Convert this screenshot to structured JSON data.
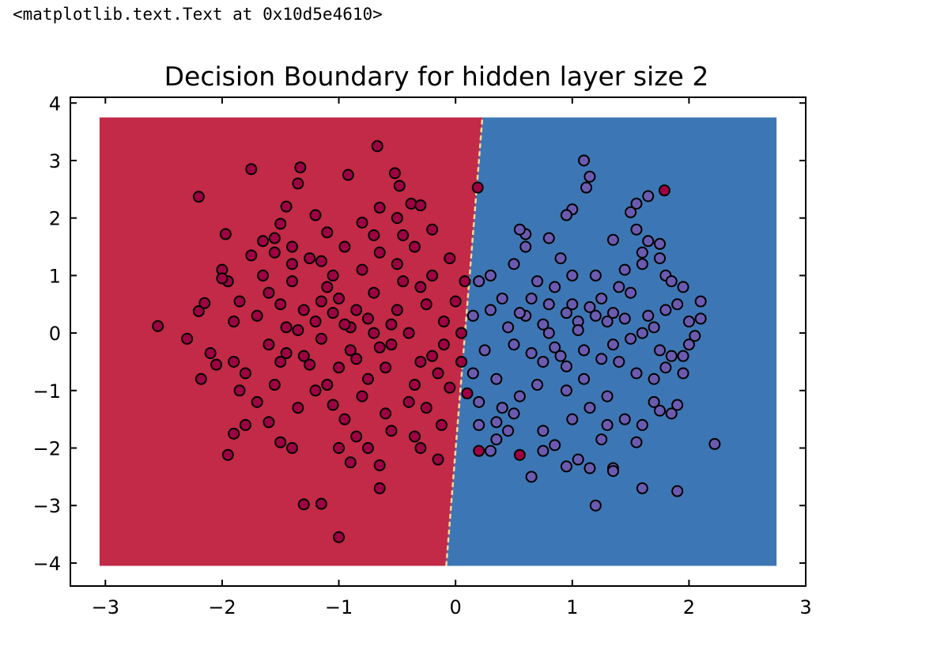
{
  "output": {
    "text": "<matplotlib.text.Text at 0x10d5e4610>"
  },
  "chart_data": {
    "type": "scatter",
    "title": "Decision Boundary for hidden layer size 2",
    "xlabel": "",
    "ylabel": "",
    "xlim": [
      -3.3,
      3.0
    ],
    "ylim": [
      -4.4,
      4.1
    ],
    "xticks": [
      -3,
      -2,
      -1,
      0,
      1,
      2,
      3
    ],
    "xtick_labels": [
      "−3",
      "−2",
      "−1",
      "0",
      "1",
      "2",
      "3"
    ],
    "yticks": [
      -4,
      -3,
      -2,
      -1,
      0,
      1,
      2,
      3,
      4
    ],
    "ytick_labels": [
      "−4",
      "−3",
      "−2",
      "−1",
      "0",
      "1",
      "2",
      "3",
      "4"
    ],
    "grid": false,
    "legend": "none",
    "colors": {
      "region_class_0": "#c22a47",
      "region_class_1": "#3d76b4",
      "point_class_0": "#9e0142",
      "point_class_1": "#6a5bb0",
      "point_edge": "#000000",
      "boundary": "#f2d99b"
    },
    "decision_regions": {
      "x_range": [
        -3.05,
        2.75
      ],
      "y_range": [
        -4.05,
        3.75
      ],
      "boundary_line": [
        [
          -0.08,
          -4.05
        ],
        [
          0.23,
          3.75
        ]
      ]
    },
    "series": [
      {
        "class": 0,
        "points": [
          [
            -2.55,
            0.12
          ],
          [
            -2.3,
            -0.1
          ],
          [
            -2.2,
            2.37
          ],
          [
            -2.2,
            0.38
          ],
          [
            -2.15,
            0.52
          ],
          [
            -2.1,
            -0.35
          ],
          [
            -2.18,
            -0.8
          ],
          [
            -1.97,
            1.72
          ],
          [
            -2.0,
            1.1
          ],
          [
            -1.95,
            0.9
          ],
          [
            -1.9,
            -0.5
          ],
          [
            -1.85,
            0.55
          ],
          [
            -1.8,
            -1.6
          ],
          [
            -1.95,
            -2.12
          ],
          [
            -1.9,
            -1.75
          ],
          [
            -1.75,
            2.85
          ],
          [
            -1.65,
            1.6
          ],
          [
            -1.55,
            1.4
          ],
          [
            -1.5,
            1.9
          ],
          [
            -1.45,
            2.2
          ],
          [
            -1.4,
            1.5
          ],
          [
            -1.35,
            2.6
          ],
          [
            -1.33,
            2.88
          ],
          [
            -1.2,
            2.05
          ],
          [
            -1.1,
            1.75
          ],
          [
            -0.92,
            2.75
          ],
          [
            -0.8,
            1.92
          ],
          [
            -0.7,
            1.7
          ],
          [
            -0.67,
            3.25
          ],
          [
            -0.65,
            2.18
          ],
          [
            -0.5,
            2.0
          ],
          [
            -0.52,
            2.78
          ],
          [
            -0.48,
            2.56
          ],
          [
            -0.38,
            2.25
          ],
          [
            -0.3,
            2.22
          ],
          [
            -0.2,
            1.8
          ],
          [
            -1.3,
            -2.98
          ],
          [
            -1.15,
            -2.97
          ],
          [
            -1.0,
            -3.55
          ],
          [
            -1.5,
            -1.9
          ],
          [
            -1.4,
            -2.0
          ],
          [
            -1.0,
            -2.0
          ],
          [
            -0.9,
            -2.25
          ],
          [
            -0.75,
            -2.0
          ],
          [
            -0.65,
            -2.3
          ],
          [
            -0.65,
            -2.7
          ],
          [
            -0.35,
            -1.8
          ],
          [
            -0.3,
            -2.0
          ],
          [
            -0.15,
            -2.2
          ],
          [
            -0.12,
            -1.6
          ],
          [
            0.1,
            -1.05
          ],
          [
            0.2,
            -2.05
          ],
          [
            0.19,
            2.53
          ],
          [
            1.79,
            2.48
          ],
          [
            0.55,
            -2.12
          ],
          [
            -1.7,
            0.3
          ],
          [
            -1.6,
            -0.2
          ],
          [
            -1.5,
            0.5
          ],
          [
            -1.4,
            0.9
          ],
          [
            -1.3,
            -0.4
          ],
          [
            -1.2,
            0.2
          ],
          [
            -1.1,
            -0.9
          ],
          [
            -1.0,
            0.6
          ],
          [
            -0.9,
            -0.3
          ],
          [
            -0.8,
            1.1
          ],
          [
            -0.7,
            0.0
          ],
          [
            -0.6,
            -0.6
          ],
          [
            -0.5,
            0.4
          ],
          [
            -0.4,
            -1.2
          ],
          [
            -0.3,
            0.8
          ],
          [
            -0.2,
            -0.4
          ],
          [
            -0.1,
            0.2
          ],
          [
            -1.65,
            1.0
          ],
          [
            -1.55,
            -0.9
          ],
          [
            -1.45,
            0.1
          ],
          [
            -1.35,
            -1.3
          ],
          [
            -1.25,
            1.3
          ],
          [
            -1.15,
            -0.1
          ],
          [
            -1.05,
            1.0
          ],
          [
            -0.95,
            -1.5
          ],
          [
            -0.85,
            0.4
          ],
          [
            -0.75,
            -0.8
          ],
          [
            -0.65,
            1.4
          ],
          [
            -0.55,
            -0.2
          ],
          [
            -0.45,
            0.9
          ],
          [
            -0.35,
            -0.9
          ],
          [
            -0.25,
            0.5
          ],
          [
            -0.15,
            -0.7
          ],
          [
            -0.05,
            1.3
          ],
          [
            -1.8,
            -0.7
          ],
          [
            -1.7,
            -1.2
          ],
          [
            -1.6,
            0.7
          ],
          [
            -1.5,
            -0.5
          ],
          [
            -1.4,
            1.2
          ],
          [
            -1.3,
            0.4
          ],
          [
            -1.2,
            -1.0
          ],
          [
            -1.1,
            0.8
          ],
          [
            -1.0,
            -0.6
          ],
          [
            -0.9,
            0.1
          ],
          [
            -0.8,
            -1.1
          ],
          [
            -0.7,
            0.7
          ],
          [
            -0.6,
            -1.4
          ],
          [
            -0.5,
            1.2
          ],
          [
            -0.4,
            0.0
          ],
          [
            -0.3,
            -0.5
          ],
          [
            -0.2,
            1.0
          ],
          [
            -0.1,
            -0.2
          ],
          [
            -1.05,
            0.35
          ],
          [
            -0.95,
            0.15
          ],
          [
            -1.15,
            0.55
          ],
          [
            -0.85,
            -0.45
          ],
          [
            -1.25,
            -0.55
          ],
          [
            -0.75,
            0.25
          ],
          [
            -1.35,
            0.05
          ],
          [
            -0.65,
            -0.25
          ],
          [
            -1.45,
            -0.35
          ],
          [
            -0.55,
            0.15
          ],
          [
            -1.9,
            0.2
          ],
          [
            -2.05,
            -0.55
          ],
          [
            -2.0,
            0.95
          ],
          [
            -1.85,
            -1.0
          ],
          [
            -1.75,
            1.35
          ],
          [
            -0.35,
            1.5
          ],
          [
            -0.25,
            -1.3
          ],
          [
            -0.45,
            1.7
          ],
          [
            -0.55,
            -1.7
          ],
          [
            -1.55,
            1.65
          ],
          [
            -1.6,
            -1.55
          ],
          [
            -0.95,
            1.5
          ],
          [
            -0.85,
            -1.8
          ],
          [
            -1.05,
            -1.25
          ],
          [
            -1.15,
            1.25
          ],
          [
            0.05,
            -0.5
          ],
          [
            0.0,
            0.55
          ],
          [
            -0.05,
            -0.95
          ],
          [
            0.08,
            0.9
          ],
          [
            0.05,
            0.0
          ]
        ]
      },
      {
        "class": 1,
        "points": [
          [
            1.1,
            3.0
          ],
          [
            1.15,
            2.72
          ],
          [
            1.12,
            2.53
          ],
          [
            1.0,
            2.15
          ],
          [
            0.95,
            2.05
          ],
          [
            0.6,
            1.72
          ],
          [
            0.55,
            1.8
          ],
          [
            0.8,
            1.65
          ],
          [
            1.35,
            1.62
          ],
          [
            1.5,
            2.1
          ],
          [
            1.55,
            2.25
          ],
          [
            1.65,
            2.38
          ],
          [
            1.55,
            1.8
          ],
          [
            1.65,
            1.6
          ],
          [
            1.75,
            1.55
          ],
          [
            1.6,
            1.4
          ],
          [
            1.75,
            1.3
          ],
          [
            1.8,
            1.0
          ],
          [
            1.95,
            0.8
          ],
          [
            2.1,
            0.55
          ],
          [
            2.1,
            0.25
          ],
          [
            2.05,
            -0.05
          ],
          [
            1.95,
            -0.4
          ],
          [
            1.85,
            -0.4
          ],
          [
            1.9,
            -1.25
          ],
          [
            1.85,
            -1.4
          ],
          [
            1.75,
            -1.35
          ],
          [
            1.6,
            -1.6
          ],
          [
            1.6,
            -2.7
          ],
          [
            1.9,
            -2.75
          ],
          [
            2.22,
            -1.93
          ],
          [
            1.2,
            -3.0
          ],
          [
            1.35,
            -2.35
          ],
          [
            1.35,
            -2.4
          ],
          [
            1.15,
            -2.35
          ],
          [
            1.05,
            -2.2
          ],
          [
            0.95,
            -2.32
          ],
          [
            0.75,
            -2.05
          ],
          [
            0.65,
            -2.5
          ],
          [
            0.3,
            -2.05
          ],
          [
            0.35,
            -1.85
          ],
          [
            0.2,
            -1.6
          ],
          [
            0.5,
            -1.4
          ],
          [
            0.75,
            -1.7
          ],
          [
            1.0,
            -1.5
          ],
          [
            1.3,
            -1.6
          ],
          [
            1.55,
            -1.9
          ],
          [
            1.7,
            -1.2
          ],
          [
            0.2,
            0.9
          ],
          [
            0.3,
            1.0
          ],
          [
            0.4,
            0.6
          ],
          [
            0.5,
            1.2
          ],
          [
            0.6,
            0.3
          ],
          [
            0.7,
            0.9
          ],
          [
            0.8,
            0.0
          ],
          [
            0.9,
            1.3
          ],
          [
            1.0,
            0.5
          ],
          [
            1.1,
            -0.3
          ],
          [
            1.2,
            1.0
          ],
          [
            1.3,
            0.2
          ],
          [
            1.4,
            -0.5
          ],
          [
            1.5,
            0.7
          ],
          [
            1.6,
            0.0
          ],
          [
            1.7,
            -0.8
          ],
          [
            1.8,
            0.4
          ],
          [
            0.25,
            -0.3
          ],
          [
            0.35,
            -0.8
          ],
          [
            0.45,
            0.1
          ],
          [
            0.55,
            -1.1
          ],
          [
            0.65,
            0.6
          ],
          [
            0.75,
            -0.5
          ],
          [
            0.85,
            0.8
          ],
          [
            0.95,
            -1.0
          ],
          [
            1.05,
            0.2
          ],
          [
            1.15,
            -1.3
          ],
          [
            1.25,
            0.6
          ],
          [
            1.35,
            -0.2
          ],
          [
            1.45,
            1.1
          ],
          [
            1.55,
            -0.7
          ],
          [
            1.65,
            0.3
          ],
          [
            1.75,
            -0.3
          ],
          [
            1.85,
            0.9
          ],
          [
            0.3,
            0.4
          ],
          [
            0.4,
            -1.3
          ],
          [
            0.5,
            -0.2
          ],
          [
            0.6,
            1.5
          ],
          [
            0.7,
            -0.9
          ],
          [
            0.8,
            0.5
          ],
          [
            0.9,
            -0.4
          ],
          [
            1.0,
            1.0
          ],
          [
            1.1,
            -0.8
          ],
          [
            1.2,
            0.3
          ],
          [
            1.3,
            -1.1
          ],
          [
            1.4,
            0.8
          ],
          [
            1.5,
            -0.1
          ],
          [
            1.6,
            1.2
          ],
          [
            1.7,
            0.1
          ],
          [
            1.8,
            -0.6
          ],
          [
            1.9,
            0.5
          ],
          [
            2.0,
            -0.2
          ],
          [
            0.95,
            0.35
          ],
          [
            1.05,
            0.05
          ],
          [
            1.15,
            0.45
          ],
          [
            0.85,
            -0.25
          ],
          [
            1.25,
            -0.45
          ],
          [
            0.75,
            0.15
          ],
          [
            1.35,
            0.35
          ],
          [
            0.65,
            -0.35
          ],
          [
            1.45,
            0.25
          ],
          [
            0.55,
            0.35
          ],
          [
            0.35,
            -1.55
          ],
          [
            0.45,
            -1.7
          ],
          [
            0.85,
            -1.95
          ],
          [
            1.25,
            -1.85
          ],
          [
            1.45,
            -1.5
          ],
          [
            0.15,
            -0.7
          ],
          [
            0.15,
            0.3
          ],
          [
            0.2,
            -1.2
          ],
          [
            1.95,
            -0.7
          ],
          [
            2.0,
            0.2
          ],
          [
            0.95,
            -0.58
          ]
        ]
      }
    ]
  }
}
